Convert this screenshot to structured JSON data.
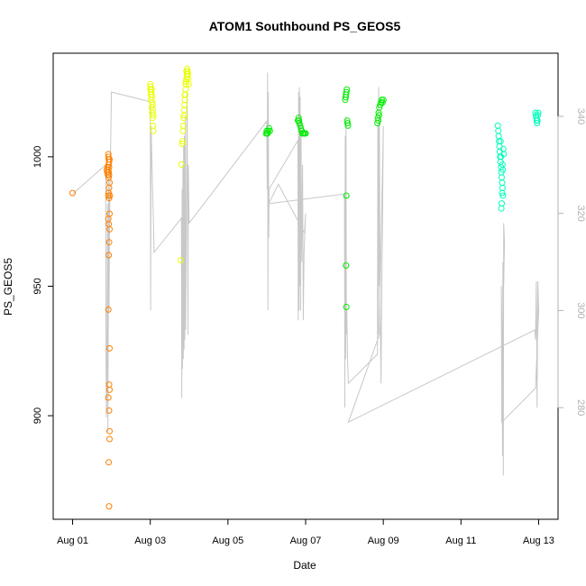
{
  "chart_data": {
    "type": "scatter",
    "title": "ATOM1 Southbound PS_GEOS5",
    "xlabel": "Date",
    "ylabel": "PS_GEOS5",
    "x_ticks": [
      "Aug 01",
      "Aug 03",
      "Aug 05",
      "Aug 07",
      "Aug 09",
      "Aug 11",
      "Aug 13"
    ],
    "x_tick_days": [
      1,
      3,
      5,
      7,
      9,
      11,
      13
    ],
    "xlim": [
      0.5,
      13.5
    ],
    "ylim": [
      860,
      1040
    ],
    "y_ticks": [
      900,
      950,
      1000
    ],
    "y2lim": [
      257,
      353
    ],
    "y2_ticks": [
      280,
      300,
      320,
      340
    ],
    "colors": {
      "orange": "#ff8000",
      "yellow": "#e8ff00",
      "green": "#00ee00",
      "teal": "#00ffbb",
      "line": "#c8c8c8"
    },
    "series": [
      {
        "color": "orange",
        "points": [
          [
            1.0,
            986
          ],
          [
            1.88,
            995
          ],
          [
            1.89,
            994
          ],
          [
            1.9,
            996
          ],
          [
            1.91,
            993
          ],
          [
            1.92,
            995
          ],
          [
            1.93,
            994
          ],
          [
            1.94,
            996
          ],
          [
            1.92,
            1000
          ],
          [
            1.93,
            999
          ],
          [
            1.92,
            1001
          ],
          [
            1.94,
            998
          ],
          [
            1.95,
            999
          ],
          [
            1.93,
            997
          ],
          [
            1.94,
            993
          ],
          [
            1.93,
            992
          ],
          [
            1.95,
            990
          ],
          [
            1.94,
            988
          ],
          [
            1.93,
            986
          ],
          [
            1.92,
            985
          ],
          [
            1.94,
            984
          ],
          [
            1.96,
            985
          ],
          [
            1.95,
            978
          ],
          [
            1.92,
            976
          ],
          [
            1.93,
            974
          ],
          [
            1.95,
            972
          ],
          [
            1.94,
            967
          ],
          [
            1.93,
            962
          ],
          [
            1.92,
            941
          ],
          [
            1.95,
            926
          ],
          [
            1.94,
            912
          ],
          [
            1.95,
            910
          ],
          [
            1.92,
            907
          ],
          [
            1.94,
            902
          ],
          [
            1.95,
            894
          ],
          [
            1.95,
            891
          ],
          [
            1.93,
            882
          ],
          [
            1.94,
            865
          ]
        ]
      },
      {
        "color": "yellow",
        "points": [
          [
            3.0,
            1028
          ],
          [
            3.01,
            1027
          ],
          [
            3.0,
            1026
          ],
          [
            3.02,
            1025
          ],
          [
            3.03,
            1024
          ],
          [
            3.04,
            1023
          ],
          [
            3.02,
            1022
          ],
          [
            3.05,
            1021
          ],
          [
            3.06,
            1020
          ],
          [
            3.03,
            1019
          ],
          [
            3.07,
            1018
          ],
          [
            3.05,
            1017
          ],
          [
            3.08,
            1016
          ],
          [
            3.06,
            1015
          ],
          [
            3.08,
            1010
          ],
          [
            3.07,
            1012
          ],
          [
            3.02,
            1024
          ],
          [
            3.04,
            1026
          ],
          [
            3.78,
            960
          ],
          [
            3.8,
            997
          ],
          [
            3.82,
            1005
          ],
          [
            3.83,
            1006
          ],
          [
            3.84,
            1010
          ],
          [
            3.85,
            1012
          ],
          [
            3.86,
            1015
          ],
          [
            3.87,
            1018
          ],
          [
            3.88,
            1020
          ],
          [
            3.89,
            1022
          ],
          [
            3.9,
            1024
          ],
          [
            3.91,
            1026
          ],
          [
            3.92,
            1028
          ],
          [
            3.93,
            1030
          ],
          [
            3.94,
            1031
          ],
          [
            3.95,
            1032
          ],
          [
            3.96,
            1033
          ],
          [
            3.97,
            1032
          ],
          [
            3.98,
            1030
          ],
          [
            3.99,
            1028
          ],
          [
            3.95,
            1034
          ],
          [
            3.93,
            1033
          ],
          [
            3.91,
            1029
          ],
          [
            3.89,
            1024
          ],
          [
            3.87,
            1016
          ]
        ]
      },
      {
        "color": "green",
        "points": [
          [
            5.98,
            1009
          ],
          [
            6.0,
            1010
          ],
          [
            6.02,
            1009
          ],
          [
            6.04,
            1010
          ],
          [
            6.06,
            1011
          ],
          [
            6.08,
            1010
          ],
          [
            6.01,
            1009
          ],
          [
            6.8,
            1014
          ],
          [
            6.82,
            1015
          ],
          [
            6.84,
            1013
          ],
          [
            6.86,
            1012
          ],
          [
            6.88,
            1011
          ],
          [
            6.9,
            1010
          ],
          [
            6.92,
            1009
          ],
          [
            6.95,
            1009
          ],
          [
            6.98,
            1009
          ],
          [
            7.0,
            1009
          ],
          [
            6.83,
            1014
          ],
          [
            8.02,
            1022
          ],
          [
            8.03,
            1023
          ],
          [
            8.04,
            1024
          ],
          [
            8.05,
            1025
          ],
          [
            8.06,
            1026
          ],
          [
            8.07,
            1014
          ],
          [
            8.08,
            1013
          ],
          [
            8.09,
            1012
          ],
          [
            8.05,
            985
          ],
          [
            8.04,
            958
          ],
          [
            8.05,
            942
          ],
          [
            8.85,
            1013
          ],
          [
            8.86,
            1015
          ],
          [
            8.88,
            1017
          ],
          [
            8.9,
            1019
          ],
          [
            8.92,
            1020
          ],
          [
            8.94,
            1021
          ],
          [
            8.96,
            1022
          ],
          [
            8.98,
            1021
          ],
          [
            9.0,
            1022
          ],
          [
            8.87,
            1014
          ],
          [
            8.89,
            1016
          ]
        ]
      },
      {
        "color": "teal",
        "points": [
          [
            11.95,
            1012
          ],
          [
            11.96,
            1010
          ],
          [
            11.97,
            1008
          ],
          [
            11.98,
            1006
          ],
          [
            11.99,
            1004
          ],
          [
            12.0,
            1002
          ],
          [
            12.01,
            1000
          ],
          [
            12.02,
            998
          ],
          [
            12.03,
            996
          ],
          [
            12.04,
            994
          ],
          [
            12.05,
            992
          ],
          [
            12.06,
            990
          ],
          [
            12.07,
            988
          ],
          [
            12.08,
            985
          ],
          [
            12.09,
            1003
          ],
          [
            12.1,
            1001
          ],
          [
            12.05,
            982
          ],
          [
            12.04,
            980
          ],
          [
            12.06,
            986
          ],
          [
            12.03,
            1000
          ],
          [
            12.07,
            997
          ],
          [
            12.02,
            1006
          ],
          [
            12.08,
            995
          ],
          [
            12.92,
            1017
          ],
          [
            12.93,
            1016
          ],
          [
            12.94,
            1015
          ],
          [
            12.95,
            1014
          ],
          [
            12.96,
            1013
          ],
          [
            12.97,
            1014
          ],
          [
            12.98,
            1016
          ],
          [
            12.99,
            1017
          ]
        ]
      }
    ],
    "line_secondary": [
      [
        1.0,
        324
      ],
      [
        1.85,
        330
      ],
      [
        1.86,
        290
      ],
      [
        1.87,
        278
      ],
      [
        1.88,
        282
      ],
      [
        1.9,
        322
      ],
      [
        1.91,
        275
      ],
      [
        1.92,
        300
      ],
      [
        1.93,
        330
      ],
      [
        1.94,
        300
      ],
      [
        1.95,
        318
      ],
      [
        2.0,
        345
      ],
      [
        3.0,
        343
      ],
      [
        3.01,
        300
      ],
      [
        3.02,
        338
      ],
      [
        3.1,
        312
      ],
      [
        3.8,
        319
      ],
      [
        3.81,
        282
      ],
      [
        3.82,
        325
      ],
      [
        3.83,
        288
      ],
      [
        3.84,
        330
      ],
      [
        3.85,
        290
      ],
      [
        3.86,
        334
      ],
      [
        3.87,
        292
      ],
      [
        3.88,
        336
      ],
      [
        3.89,
        294
      ],
      [
        3.9,
        340
      ],
      [
        3.91,
        296
      ],
      [
        3.95,
        345
      ],
      [
        3.96,
        320
      ],
      [
        3.97,
        295
      ],
      [
        3.98,
        330
      ],
      [
        4.0,
        318
      ],
      [
        6.0,
        339
      ],
      [
        6.01,
        325
      ],
      [
        6.02,
        349
      ],
      [
        6.03,
        300
      ],
      [
        6.04,
        345
      ],
      [
        6.05,
        315
      ],
      [
        6.06,
        325
      ],
      [
        6.8,
        335
      ],
      [
        6.81,
        298
      ],
      [
        6.82,
        345
      ],
      [
        6.83,
        300
      ],
      [
        6.84,
        346
      ],
      [
        6.85,
        305
      ],
      [
        6.86,
        344
      ],
      [
        6.87,
        300
      ],
      [
        6.88,
        340
      ],
      [
        6.9,
        310
      ],
      [
        6.92,
        330
      ],
      [
        6.94,
        298
      ],
      [
        6.96,
        312
      ],
      [
        7.0,
        320
      ],
      [
        6.97,
        316
      ],
      [
        6.3,
        326
      ],
      [
        6.05,
        322
      ],
      [
        8.0,
        324
      ],
      [
        8.01,
        280
      ],
      [
        8.02,
        336
      ],
      [
        8.03,
        290
      ],
      [
        8.04,
        340
      ],
      [
        8.05,
        295
      ],
      [
        8.06,
        300
      ],
      [
        8.08,
        290
      ],
      [
        8.1,
        285
      ],
      [
        8.85,
        291
      ],
      [
        8.86,
        338
      ],
      [
        8.87,
        295
      ],
      [
        8.88,
        346
      ],
      [
        8.89,
        305
      ],
      [
        8.9,
        340
      ],
      [
        8.92,
        300
      ],
      [
        8.94,
        285
      ],
      [
        9.0,
        338
      ],
      [
        8.9,
        295
      ],
      [
        8.1,
        277
      ],
      [
        12.9,
        296
      ],
      [
        12.92,
        294
      ],
      [
        12.94,
        306
      ],
      [
        12.96,
        280
      ],
      [
        12.98,
        306
      ],
      [
        13.0,
        300
      ],
      [
        12.92,
        284
      ],
      [
        12.05,
        277
      ],
      [
        12.04,
        305
      ],
      [
        12.06,
        292
      ],
      [
        12.07,
        270
      ],
      [
        12.08,
        310
      ],
      [
        12.09,
        266
      ],
      [
        12.1,
        318
      ],
      [
        12.12,
        314
      ],
      [
        12.1,
        305
      ]
    ]
  }
}
